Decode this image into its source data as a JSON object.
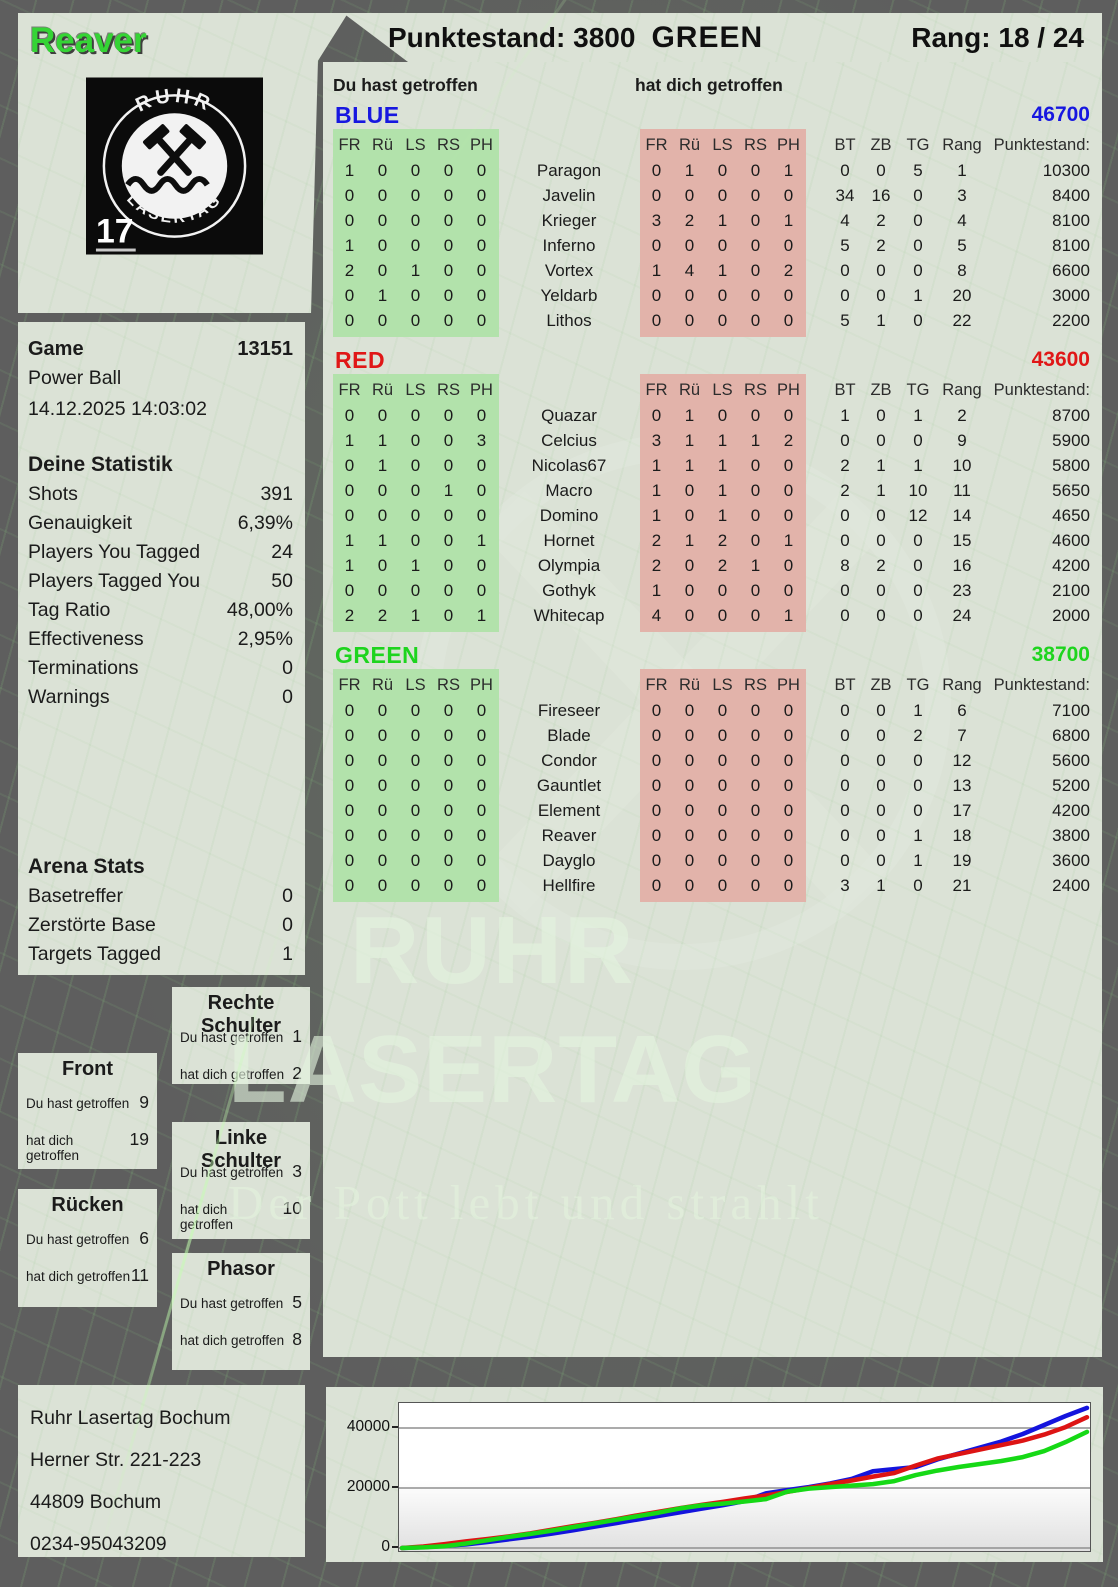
{
  "colors": {
    "player_green": "#35d435",
    "block_you": "#b2e2ab",
    "block_them": "#e2b3aa",
    "team_blue": "#1717e0",
    "team_red": "#e01717",
    "team_green": "#1ed41e"
  },
  "header": {
    "player": "Reaver",
    "points": "Punktestand: 3800",
    "team": "GREEN",
    "rank": "Rang: 18 / 24"
  },
  "logo": {
    "top": "RUHR",
    "bottom": "LASERTAG",
    "number": "17"
  },
  "labels": {
    "you_hit": "Du hast getroffen",
    "hit_you": "hat dich getroffen"
  },
  "game": {
    "label": "Game",
    "number": "13151",
    "mode": "Power Ball",
    "datetime": "14.12.2025 14:03:02"
  },
  "your_stats": {
    "title": "Deine Statistik",
    "rows": [
      {
        "label": "Shots",
        "value": "391"
      },
      {
        "label": "Genauigkeit",
        "value": "6,39%"
      },
      {
        "label": "Players You Tagged",
        "value": "24"
      },
      {
        "label": "Players Tagged You",
        "value": "50"
      },
      {
        "label": "Tag Ratio",
        "value": "48,00%"
      },
      {
        "label": "Effectiveness",
        "value": "2,95%"
      },
      {
        "label": "Terminations",
        "value": "0"
      },
      {
        "label": "Warnings",
        "value": "0"
      }
    ]
  },
  "arena_stats": {
    "title": "Arena Stats",
    "rows": [
      {
        "label": "Basetreffer",
        "value": "0"
      },
      {
        "label": "Zerstörte Base",
        "value": "0"
      },
      {
        "label": "Targets Tagged",
        "value": "1"
      }
    ]
  },
  "scoreboard": {
    "hit_cols": [
      "FR",
      "Rü",
      "LS",
      "RS",
      "PH"
    ],
    "stat_cols": [
      "BT",
      "ZB",
      "TG",
      "Rang",
      "Punktestand:"
    ],
    "teams": [
      {
        "name": "BLUE",
        "color": "#1717e0",
        "score": "46700",
        "players": [
          {
            "name": "Paragon",
            "you_hit": [
              1,
              0,
              0,
              0,
              0
            ],
            "hit_you": [
              0,
              1,
              0,
              0,
              1
            ],
            "bt": "0",
            "zb": "0",
            "tg": "5",
            "rang": "1",
            "punkte": "10300"
          },
          {
            "name": "Javelin",
            "you_hit": [
              0,
              0,
              0,
              0,
              0
            ],
            "hit_you": [
              0,
              0,
              0,
              0,
              0
            ],
            "bt": "34",
            "zb": "16",
            "tg": "0",
            "rang": "3",
            "punkte": "8400"
          },
          {
            "name": "Krieger",
            "you_hit": [
              0,
              0,
              0,
              0,
              0
            ],
            "hit_you": [
              3,
              2,
              1,
              0,
              1
            ],
            "bt": "4",
            "zb": "2",
            "tg": "0",
            "rang": "4",
            "punkte": "8100"
          },
          {
            "name": "Inferno",
            "you_hit": [
              1,
              0,
              0,
              0,
              0
            ],
            "hit_you": [
              0,
              0,
              0,
              0,
              0
            ],
            "bt": "5",
            "zb": "2",
            "tg": "0",
            "rang": "5",
            "punkte": "8100"
          },
          {
            "name": "Vortex",
            "you_hit": [
              2,
              0,
              1,
              0,
              0
            ],
            "hit_you": [
              1,
              4,
              1,
              0,
              2
            ],
            "bt": "0",
            "zb": "0",
            "tg": "0",
            "rang": "8",
            "punkte": "6600"
          },
          {
            "name": "Yeldarb",
            "you_hit": [
              0,
              1,
              0,
              0,
              0
            ],
            "hit_you": [
              0,
              0,
              0,
              0,
              0
            ],
            "bt": "0",
            "zb": "0",
            "tg": "1",
            "rang": "20",
            "punkte": "3000"
          },
          {
            "name": "Lithos",
            "you_hit": [
              0,
              0,
              0,
              0,
              0
            ],
            "hit_you": [
              0,
              0,
              0,
              0,
              0
            ],
            "bt": "5",
            "zb": "1",
            "tg": "0",
            "rang": "22",
            "punkte": "2200"
          }
        ]
      },
      {
        "name": "RED",
        "color": "#e01717",
        "score": "43600",
        "players": [
          {
            "name": "Quazar",
            "you_hit": [
              0,
              0,
              0,
              0,
              0
            ],
            "hit_you": [
              0,
              1,
              0,
              0,
              0
            ],
            "bt": "1",
            "zb": "0",
            "tg": "1",
            "rang": "2",
            "punkte": "8700"
          },
          {
            "name": "Celcius",
            "you_hit": [
              1,
              1,
              0,
              0,
              3
            ],
            "hit_you": [
              3,
              1,
              1,
              1,
              2
            ],
            "bt": "0",
            "zb": "0",
            "tg": "0",
            "rang": "9",
            "punkte": "5900"
          },
          {
            "name": "Nicolas67",
            "you_hit": [
              0,
              1,
              0,
              0,
              0
            ],
            "hit_you": [
              1,
              1,
              1,
              0,
              0
            ],
            "bt": "2",
            "zb": "1",
            "tg": "1",
            "rang": "10",
            "punkte": "5800"
          },
          {
            "name": "Macro",
            "you_hit": [
              0,
              0,
              0,
              1,
              0
            ],
            "hit_you": [
              1,
              0,
              1,
              0,
              0
            ],
            "bt": "2",
            "zb": "1",
            "tg": "10",
            "rang": "11",
            "punkte": "5650"
          },
          {
            "name": "Domino",
            "you_hit": [
              0,
              0,
              0,
              0,
              0
            ],
            "hit_you": [
              1,
              0,
              1,
              0,
              0
            ],
            "bt": "0",
            "zb": "0",
            "tg": "12",
            "rang": "14",
            "punkte": "4650"
          },
          {
            "name": "Hornet",
            "you_hit": [
              1,
              1,
              0,
              0,
              1
            ],
            "hit_you": [
              2,
              1,
              2,
              0,
              1
            ],
            "bt": "0",
            "zb": "0",
            "tg": "0",
            "rang": "15",
            "punkte": "4600"
          },
          {
            "name": "Olympia",
            "you_hit": [
              1,
              0,
              1,
              0,
              0
            ],
            "hit_you": [
              2,
              0,
              2,
              1,
              0
            ],
            "bt": "8",
            "zb": "2",
            "tg": "0",
            "rang": "16",
            "punkte": "4200"
          },
          {
            "name": "Gothyk",
            "you_hit": [
              0,
              0,
              0,
              0,
              0
            ],
            "hit_you": [
              1,
              0,
              0,
              0,
              0
            ],
            "bt": "0",
            "zb": "0",
            "tg": "0",
            "rang": "23",
            "punkte": "2100"
          },
          {
            "name": "Whitecap",
            "you_hit": [
              2,
              2,
              1,
              0,
              1
            ],
            "hit_you": [
              4,
              0,
              0,
              0,
              1
            ],
            "bt": "0",
            "zb": "0",
            "tg": "0",
            "rang": "24",
            "punkte": "2000"
          }
        ]
      },
      {
        "name": "GREEN",
        "color": "#1ed41e",
        "score": "38700",
        "players": [
          {
            "name": "Fireseer",
            "you_hit": [
              0,
              0,
              0,
              0,
              0
            ],
            "hit_you": [
              0,
              0,
              0,
              0,
              0
            ],
            "bt": "0",
            "zb": "0",
            "tg": "1",
            "rang": "6",
            "punkte": "7100"
          },
          {
            "name": "Blade",
            "you_hit": [
              0,
              0,
              0,
              0,
              0
            ],
            "hit_you": [
              0,
              0,
              0,
              0,
              0
            ],
            "bt": "0",
            "zb": "0",
            "tg": "2",
            "rang": "7",
            "punkte": "6800"
          },
          {
            "name": "Condor",
            "you_hit": [
              0,
              0,
              0,
              0,
              0
            ],
            "hit_you": [
              0,
              0,
              0,
              0,
              0
            ],
            "bt": "0",
            "zb": "0",
            "tg": "0",
            "rang": "12",
            "punkte": "5600"
          },
          {
            "name": "Gauntlet",
            "you_hit": [
              0,
              0,
              0,
              0,
              0
            ],
            "hit_you": [
              0,
              0,
              0,
              0,
              0
            ],
            "bt": "0",
            "zb": "0",
            "tg": "0",
            "rang": "13",
            "punkte": "5200"
          },
          {
            "name": "Element",
            "you_hit": [
              0,
              0,
              0,
              0,
              0
            ],
            "hit_you": [
              0,
              0,
              0,
              0,
              0
            ],
            "bt": "0",
            "zb": "0",
            "tg": "0",
            "rang": "17",
            "punkte": "4200"
          },
          {
            "name": "Reaver",
            "you_hit": [
              0,
              0,
              0,
              0,
              0
            ],
            "hit_you": [
              0,
              0,
              0,
              0,
              0
            ],
            "bt": "0",
            "zb": "0",
            "tg": "1",
            "rang": "18",
            "punkte": "3800"
          },
          {
            "name": "Dayglo",
            "you_hit": [
              0,
              0,
              0,
              0,
              0
            ],
            "hit_you": [
              0,
              0,
              0,
              0,
              0
            ],
            "bt": "0",
            "zb": "0",
            "tg": "1",
            "rang": "19",
            "punkte": "3600"
          },
          {
            "name": "Hellfire",
            "you_hit": [
              0,
              0,
              0,
              0,
              0
            ],
            "hit_you": [
              0,
              0,
              0,
              0,
              0
            ],
            "bt": "3",
            "zb": "1",
            "tg": "0",
            "rang": "21",
            "punkte": "2400"
          }
        ]
      }
    ]
  },
  "body_parts": [
    {
      "id": "rechte-schulter",
      "title": "Rechte Schulter",
      "you": "1",
      "them": "2"
    },
    {
      "id": "front",
      "title": "Front",
      "you": "9",
      "them": "19"
    },
    {
      "id": "linke-schulter",
      "title": "Linke Schulter",
      "you": "3",
      "them": "10"
    },
    {
      "id": "ruecken",
      "title": "Rücken",
      "you": "6",
      "them": "11"
    },
    {
      "id": "phasor",
      "title": "Phasor",
      "you": "5",
      "them": "8"
    }
  ],
  "watermark": {
    "line1": "RUHR",
    "line2": "LASERTAG",
    "tagline": "Der Pott lebt und strahlt"
  },
  "address": [
    "Ruhr Lasertag Bochum",
    "Herner Str. 221-223",
    "44809 Bochum",
    "0234-95043209"
  ],
  "chart_data": {
    "type": "line",
    "title": "",
    "xlabel": "",
    "ylabel": "",
    "grid": true,
    "legend": "none",
    "ylim": [
      0,
      48000
    ],
    "yticks": [
      0,
      20000,
      40000
    ],
    "series": [
      {
        "name": "BLUE",
        "color": "#1414dd",
        "values": [
          0,
          300,
          700,
          1200,
          2000,
          2900,
          3800,
          4800,
          5900,
          7100,
          8300,
          9500,
          10700,
          11900,
          13100,
          14300,
          15600,
          18200,
          19300,
          20300,
          21500,
          23000,
          25600,
          26300,
          27000,
          29500,
          31500,
          33500,
          35500,
          38000,
          41000,
          44000,
          46700
        ]
      },
      {
        "name": "RED",
        "color": "#dd1414",
        "values": [
          0,
          500,
          1300,
          2200,
          3000,
          3900,
          4900,
          6100,
          7300,
          8400,
          9600,
          10900,
          12100,
          13300,
          14400,
          15400,
          16500,
          17500,
          18700,
          20000,
          21300,
          22500,
          23800,
          25000,
          27500,
          29800,
          31300,
          32800,
          34300,
          35800,
          37800,
          40300,
          43600
        ]
      },
      {
        "name": "GREEN",
        "color": "#16d916",
        "values": [
          0,
          200,
          600,
          1500,
          2600,
          3700,
          4700,
          5800,
          7000,
          8200,
          9400,
          10600,
          11800,
          13200,
          14200,
          14800,
          15500,
          16300,
          18800,
          19800,
          20300,
          20800,
          21300,
          22300,
          24300,
          25800,
          27000,
          28000,
          29000,
          30300,
          32300,
          35300,
          38700
        ]
      }
    ]
  }
}
